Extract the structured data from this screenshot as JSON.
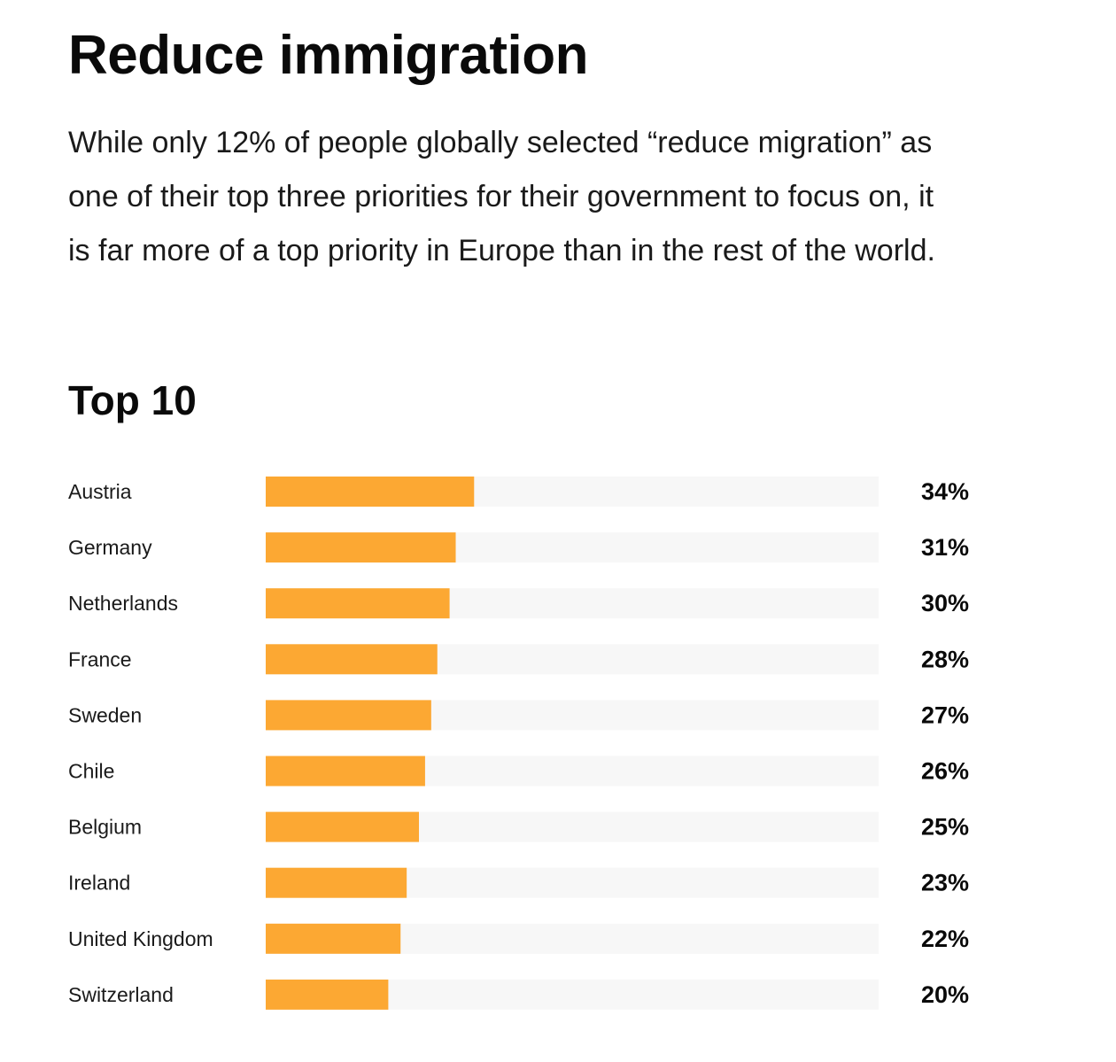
{
  "header": {
    "title": "Reduce immigration",
    "intro": "While only 12% of people globally selected “reduce migration” as one of their top three priorities for their government to focus on, it is far more of a top priority in Europe than in the rest of the world."
  },
  "chart_data": {
    "type": "bar",
    "orientation": "horizontal",
    "title": "Top 10",
    "categories": [
      "Austria",
      "Germany",
      "Netherlands",
      "France",
      "Sweden",
      "Chile",
      "Belgium",
      "Ireland",
      "United Kingdom",
      "Switzerland"
    ],
    "values": [
      34,
      31,
      30,
      28,
      27,
      26,
      25,
      23,
      22,
      20
    ],
    "value_labels": [
      "34%",
      "31%",
      "30%",
      "28%",
      "27%",
      "26%",
      "25%",
      "23%",
      "22%",
      "20%"
    ],
    "unit": "%",
    "xlim": [
      0,
      100
    ],
    "colors": {
      "bar": "#FCA833",
      "track": "#F7F7F7"
    }
  }
}
